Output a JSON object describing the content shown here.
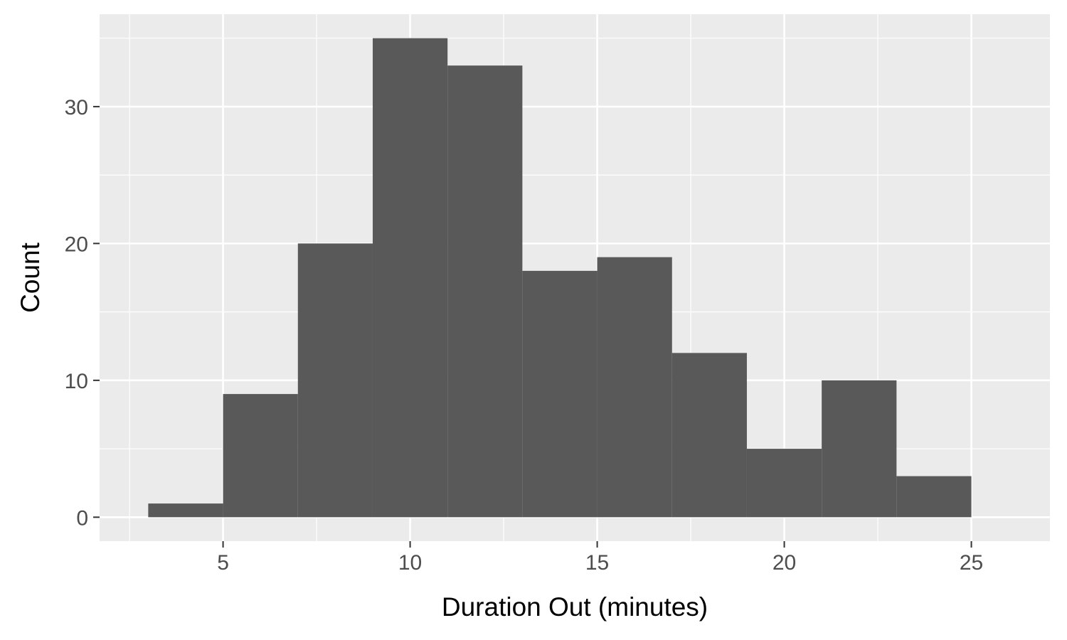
{
  "chart_data": {
    "type": "bar",
    "subtype": "histogram",
    "title": "",
    "xlabel": "Duration Out (minutes)",
    "ylabel": "Count",
    "bin_edges": [
      3,
      5,
      7,
      9,
      11,
      13,
      15,
      17,
      19,
      21,
      23,
      25
    ],
    "values": [
      1,
      9,
      20,
      35,
      33,
      18,
      19,
      12,
      5,
      10,
      3
    ],
    "xlim": [
      1.7,
      27.1
    ],
    "ylim": [
      -1.75,
      36.75
    ],
    "x_ticks": [
      5,
      10,
      15,
      20,
      25
    ],
    "x_tick_labels": [
      "5",
      "10",
      "15",
      "20",
      "25"
    ],
    "y_ticks": [
      0,
      10,
      20,
      30
    ],
    "y_tick_labels": [
      "0",
      "10",
      "20",
      "30"
    ],
    "x_minor_ticks": [
      2.5,
      7.5,
      12.5,
      17.5,
      22.5
    ],
    "y_minor_ticks": [
      5,
      15,
      25,
      35
    ],
    "grid": true,
    "legend": "none",
    "colors": {
      "bar_fill": "#595959",
      "panel_background": "#ebebeb",
      "grid_line": "#ffffff",
      "tick_label": "#4d4d4d",
      "axis_title": "#000000",
      "tick_mark": "#333333"
    }
  }
}
